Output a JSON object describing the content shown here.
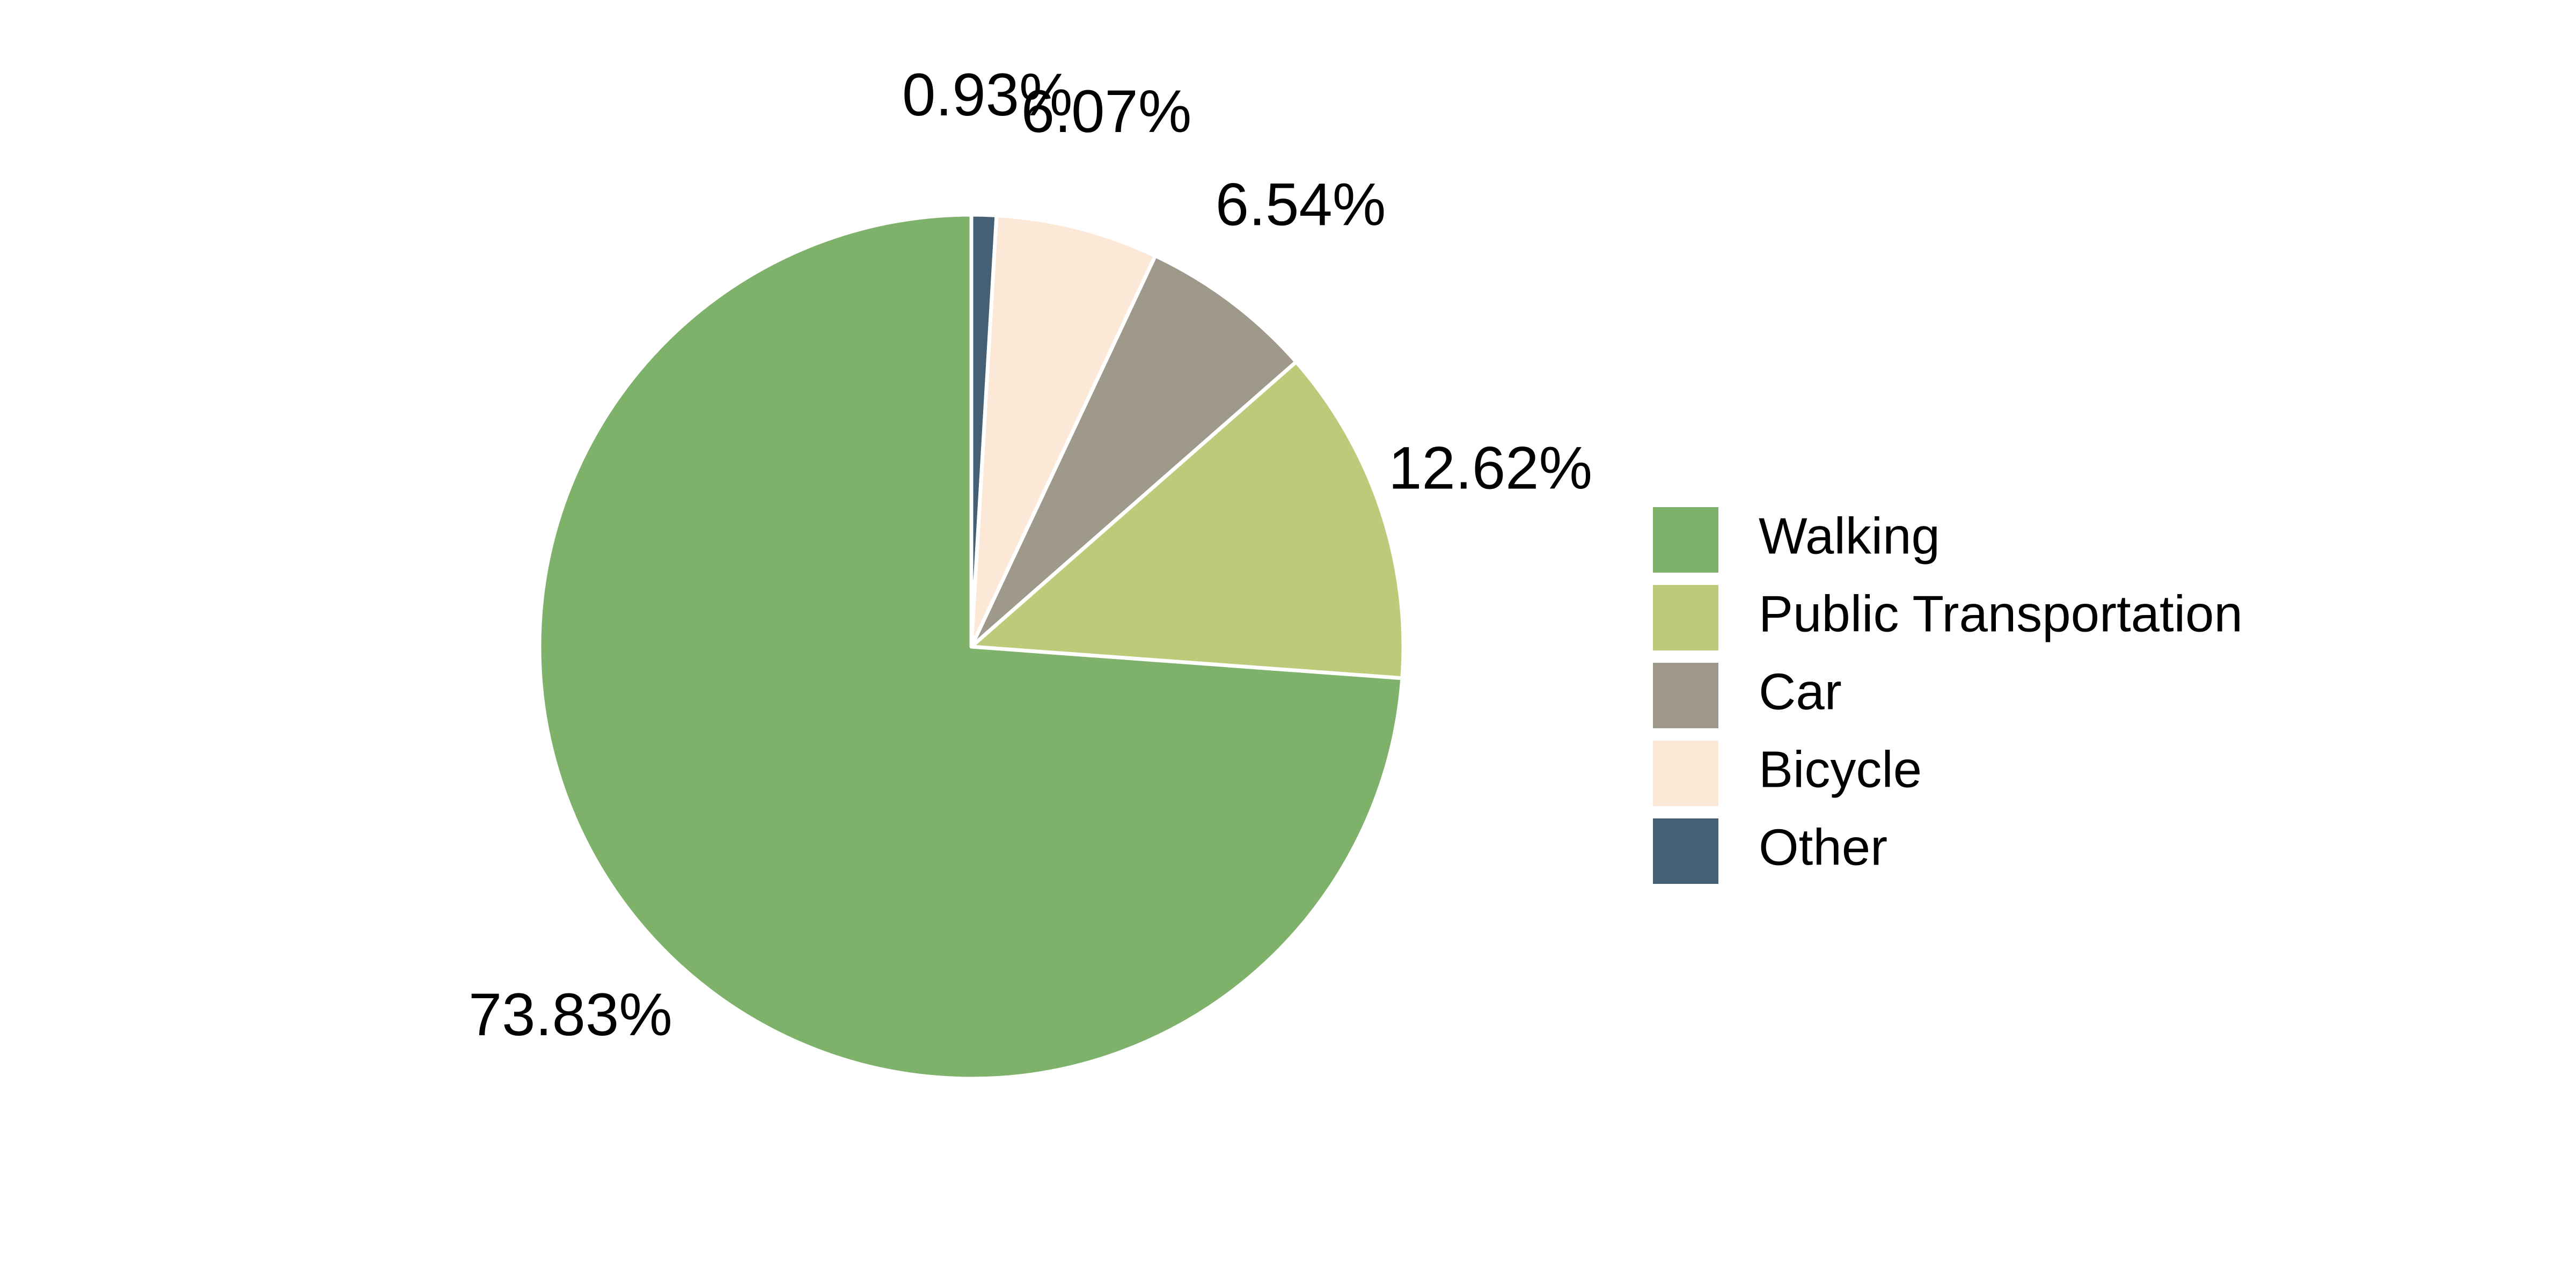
{
  "chart_data": {
    "type": "pie",
    "title": "",
    "start": "12 o'clock",
    "direction": "clockwise",
    "legend_position": "right",
    "slices": [
      {
        "label": "Other",
        "value": 0.93,
        "display": "0.93%",
        "color": "#455f75"
      },
      {
        "label": "Bicycle",
        "value": 6.07,
        "display": "6.07%",
        "color": "#fce8d7"
      },
      {
        "label": "Car",
        "value": 6.54,
        "display": "6.54%",
        "color": "#9f998b"
      },
      {
        "label": "Public Transportation",
        "value": 12.62,
        "display": "12.62%",
        "color": "#bccb7a"
      },
      {
        "label": "Walking",
        "value": 73.83,
        "display": "73.83%",
        "color": "#7eb26a"
      }
    ],
    "legend_order": [
      "Walking",
      "Public Transportation",
      "Car",
      "Bicycle",
      "Other"
    ]
  }
}
